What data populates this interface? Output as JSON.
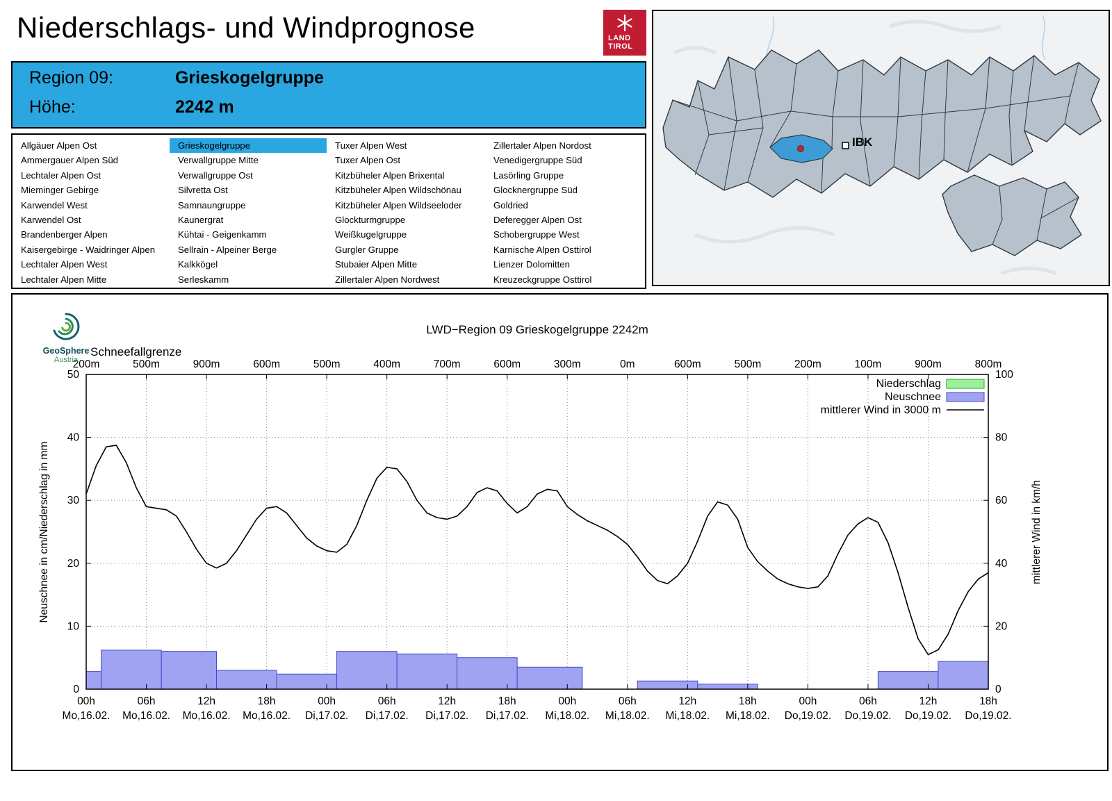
{
  "header": {
    "title": "Niederschlags- und Windprognose",
    "logo": {
      "line1": "LAND",
      "line2": "TIROL"
    }
  },
  "region_banner": {
    "rows": [
      {
        "label": "Region 09:",
        "value": "Grieskogelgruppe"
      },
      {
        "label": "Höhe:",
        "value": "2242 m"
      }
    ]
  },
  "region_list": {
    "selected": "Grieskogelgruppe",
    "highlight_color": "#2aa7e1",
    "columns": [
      [
        "Allgäuer Alpen Ost",
        "Ammergauer Alpen Süd",
        "Lechtaler Alpen Ost",
        "Mieminger Gebirge",
        "Karwendel West",
        "Karwendel Ost",
        "Brandenberger Alpen",
        "Kaisergebirge - Waidringer Alpen",
        "Lechtaler Alpen West",
        "Lechtaler Alpen Mitte"
      ],
      [
        "Grieskogelgruppe",
        "Verwallgruppe Mitte",
        "Verwallgruppe Ost",
        "Silvretta Ost",
        "Samnaungruppe",
        "Kaunergrat",
        "Kühtai - Geigenkamm",
        "Sellrain - Alpeiner Berge",
        "Kalkkögel",
        "Serleskamm"
      ],
      [
        "Tuxer Alpen West",
        "Tuxer Alpen Ost",
        "Kitzbüheler Alpen Brixental",
        "Kitzbüheler Alpen Wildschönau",
        "Kitzbüheler Alpen Wildseeloder",
        "Glockturmgruppe",
        "Weißkugelgruppe",
        "Gurgler Gruppe",
        "Stubaier Alpen Mitte",
        "Zillertaler Alpen Nordwest"
      ],
      [
        "Zillertaler Alpen Nordost",
        "Venedigergruppe Süd",
        "Lasörling Gruppe",
        "Glocknergruppe Süd",
        "Goldried",
        "Deferegger Alpen Ost",
        "Schobergruppe West",
        "Karnische Alpen Osttirol",
        "Lienzer Dolomitten",
        "Kreuzeckgruppe Osttirol"
      ]
    ]
  },
  "map": {
    "city_label": "IBK",
    "highlight_color": "#3d9bd5",
    "marker_color": "#b03030"
  },
  "geosphere": {
    "name": "GeoSphere",
    "country": "Austria"
  },
  "chart_data": {
    "type": "mixed",
    "title": "LWD−Region 09 Grieskogelgruppe 2242m",
    "snowline_label": "Schneefallgrenze",
    "snowline_values": [
      "200m",
      "500m",
      "900m",
      "600m",
      "500m",
      "400m",
      "700m",
      "600m",
      "300m",
      "0m",
      "600m",
      "500m",
      "200m",
      "100m",
      "900m",
      "800m"
    ],
    "x_hours_total": 90,
    "x_tick_hours": [
      0,
      6,
      12,
      18,
      24,
      30,
      36,
      42,
      48,
      54,
      60,
      66,
      72,
      78,
      84,
      90
    ],
    "x_tick_labels": [
      "00h",
      "06h",
      "12h",
      "18h",
      "00h",
      "06h",
      "12h",
      "18h",
      "00h",
      "06h",
      "12h",
      "18h",
      "00h",
      "06h",
      "12h",
      "18h"
    ],
    "x_tick_dates": [
      "Mo,16.02.",
      "Mo,16.02.",
      "Mo,16.02.",
      "Mo,16.02.",
      "Di,17.02.",
      "Di,17.02.",
      "Di,17.02.",
      "Di,17.02.",
      "Mi,18.02.",
      "Mi,18.02.",
      "Mi,18.02.",
      "Mi,18.02.",
      "Do,19.02.",
      "Do,19.02.",
      "Do,19.02.",
      "Do,19.02."
    ],
    "ylabel_left": "Neuschnee in cm/Niederschlag in mm",
    "ylabel_right": "mittlerer Wind in km/h",
    "ylim_left": [
      0,
      50
    ],
    "ylim_right": [
      0,
      100
    ],
    "ytick_left": [
      0,
      10,
      20,
      30,
      40,
      50
    ],
    "ytick_right": [
      0,
      20,
      40,
      60,
      80,
      100
    ],
    "grid": true,
    "legend_position": "top-right",
    "legend": [
      {
        "label": "Niederschlag",
        "type": "box",
        "fill": "#9cf09c",
        "stroke": "#22aa22"
      },
      {
        "label": "Neuschnee",
        "type": "box",
        "fill": "#a0a3f2",
        "stroke": "#4649c8"
      },
      {
        "label": "mittlerer Wind in 3000 m",
        "type": "line",
        "stroke": "#000000"
      }
    ],
    "series": [
      {
        "name": "Niederschlag",
        "type": "bars",
        "axis": "left",
        "unit": "mm",
        "fill": "#9cf09c",
        "stroke": "#22aa22",
        "bars": []
      },
      {
        "name": "Neuschnee",
        "type": "bars",
        "axis": "left",
        "unit": "cm",
        "fill": "#a0a3f2",
        "stroke": "#4649c8",
        "bars": [
          {
            "from": 0,
            "to": 1.5,
            "value": 2.8
          },
          {
            "from": 1.5,
            "to": 7.5,
            "value": 6.2
          },
          {
            "from": 7.5,
            "to": 13,
            "value": 6.0
          },
          {
            "from": 13,
            "to": 19,
            "value": 3.0
          },
          {
            "from": 19,
            "to": 25,
            "value": 2.4
          },
          {
            "from": 25,
            "to": 31,
            "value": 6.0
          },
          {
            "from": 31,
            "to": 37,
            "value": 5.6
          },
          {
            "from": 37,
            "to": 43,
            "value": 5.0
          },
          {
            "from": 43,
            "to": 49.5,
            "value": 3.5
          },
          {
            "from": 55,
            "to": 61,
            "value": 1.3
          },
          {
            "from": 61,
            "to": 67,
            "value": 0.8
          },
          {
            "from": 79,
            "to": 85,
            "value": 2.8
          },
          {
            "from": 85,
            "to": 90,
            "value": 4.4
          }
        ]
      },
      {
        "name": "mittlerer Wind in 3000 m",
        "type": "line",
        "axis": "right",
        "unit": "km/h",
        "stroke": "#000000",
        "x0": 0,
        "dx": 1,
        "y": [
          62,
          71,
          77,
          77.5,
          72,
          64,
          58,
          57.5,
          57,
          55,
          50,
          44.5,
          40,
          38.5,
          40,
          44,
          49,
          54,
          57.5,
          58,
          56,
          52,
          48,
          45.5,
          44,
          43.5,
          46,
          52,
          60,
          67,
          70.5,
          70,
          66,
          60,
          56,
          54.5,
          54,
          55,
          58,
          62.5,
          64,
          63,
          59,
          56,
          58,
          62,
          63.5,
          63,
          58,
          55.5,
          53.5,
          52,
          50.5,
          48.5,
          46,
          42,
          37.5,
          34.5,
          33.5,
          36,
          40,
          47,
          55,
          59.5,
          58.5,
          54,
          45,
          40.5,
          37.5,
          35,
          33.5,
          32.5,
          32,
          32.5,
          36,
          43,
          49,
          52.5,
          54.5,
          53,
          46.5,
          37,
          26,
          16,
          11,
          12.5,
          17.5,
          25,
          31,
          35,
          37
        ]
      }
    ]
  }
}
